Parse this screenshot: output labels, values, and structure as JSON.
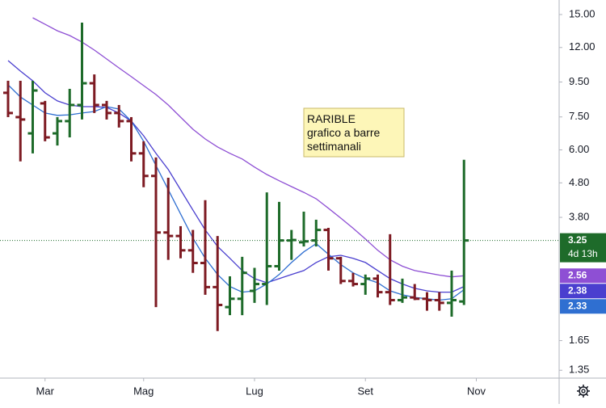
{
  "chart_data": {
    "type": "ohlc",
    "annotation": [
      "RARIBLE",
      "grafico a barre",
      "settimanali"
    ],
    "categories": [
      null,
      null,
      null,
      "Mar",
      null,
      null,
      null,
      null,
      null,
      null,
      null,
      "Mag",
      null,
      null,
      null,
      null,
      null,
      null,
      null,
      null,
      "Lug",
      null,
      null,
      null,
      null,
      null,
      null,
      null,
      null,
      "Set",
      null,
      null,
      null,
      null,
      null,
      null,
      null,
      null,
      "Nov"
    ],
    "open": [
      8.83,
      7.49,
      6.71,
      8.22,
      6.71,
      7.29,
      8.13,
      9.42,
      8.13,
      7.7,
      7.29,
      5.86,
      5.03,
      3.43,
      3.35,
      3.04,
      2.79,
      2.37,
      2.07,
      2.19,
      2.31,
      2.42,
      2.73,
      3.25,
      3.21,
      3.25,
      3.49,
      2.88,
      2.47,
      2.42,
      2.51,
      2.29,
      2.17,
      2.21,
      2.19,
      2.17,
      2.13,
      2.15,
      null
    ],
    "high": [
      9.58,
      9.58,
      9.58,
      8.36,
      7.49,
      9.07,
      14.2,
      10.0,
      8.36,
      8.13,
      7.49,
      6.36,
      5.7,
      4.97,
      3.58,
      3.49,
      4.27,
      3.35,
      2.55,
      2.91,
      2.7,
      4.5,
      4.22,
      3.49,
      3.95,
      3.74,
      3.54,
      2.91,
      2.61,
      2.58,
      2.58,
      3.39,
      2.51,
      2.42,
      2.29,
      2.29,
      2.65,
      5.61,
      null
    ],
    "low": [
      7.49,
      5.55,
      5.86,
      6.36,
      6.18,
      6.53,
      7.37,
      7.7,
      7.37,
      6.98,
      5.55,
      4.66,
      2.07,
      2.85,
      2.88,
      2.61,
      2.25,
      1.76,
      1.96,
      1.96,
      2.13,
      2.1,
      2.65,
      2.85,
      3.12,
      3.12,
      2.65,
      2.42,
      2.38,
      2.25,
      2.21,
      2.1,
      2.13,
      2.17,
      2.02,
      2.02,
      1.94,
      2.1,
      null
    ],
    "close": [
      7.7,
      7.37,
      8.97,
      6.53,
      7.29,
      8.13,
      9.42,
      8.13,
      7.7,
      7.29,
      5.86,
      5.03,
      3.43,
      3.35,
      3.04,
      2.79,
      2.37,
      2.1,
      2.19,
      2.61,
      2.42,
      2.73,
      3.25,
      3.26,
      3.23,
      3.49,
      2.88,
      2.47,
      2.42,
      2.51,
      2.29,
      2.17,
      2.21,
      2.19,
      2.17,
      2.13,
      2.17,
      3.25,
      null
    ],
    "up_color": "#1e6b2a",
    "down_color": "#7d1a22",
    "moving_averages": [
      {
        "color": "#8e4fd4",
        "values": [
          null,
          null,
          14.67,
          14.04,
          13.44,
          13.01,
          12.45,
          11.79,
          11.1,
          10.45,
          9.85,
          9.27,
          8.73,
          8.13,
          7.49,
          6.9,
          6.46,
          6.12,
          5.86,
          5.64,
          5.34,
          5.08,
          4.87,
          4.68,
          4.5,
          4.31,
          4.04,
          3.78,
          3.53,
          3.28,
          3.04,
          2.85,
          2.73,
          2.65,
          2.61,
          2.57,
          2.54,
          2.56,
          null
        ]
      },
      {
        "color": "#4a3fcf",
        "values": [
          10.98,
          10.23,
          9.58,
          8.83,
          8.36,
          8.13,
          8.04,
          8.04,
          8.0,
          7.7,
          7.29,
          6.6,
          5.86,
          5.25,
          4.58,
          3.99,
          3.49,
          3.12,
          2.88,
          2.65,
          2.51,
          2.44,
          2.51,
          2.58,
          2.65,
          2.8,
          2.91,
          2.94,
          2.88,
          2.8,
          2.65,
          2.51,
          2.42,
          2.35,
          2.31,
          2.29,
          2.29,
          2.38,
          null
        ]
      },
      {
        "color": "#2f6fd1",
        "values": [
          9.32,
          8.58,
          8.13,
          7.7,
          7.58,
          7.61,
          7.7,
          7.78,
          8.04,
          7.91,
          7.29,
          6.36,
          5.4,
          4.58,
          3.89,
          3.3,
          2.88,
          2.58,
          2.38,
          2.29,
          2.31,
          2.42,
          2.58,
          2.8,
          3.01,
          3.18,
          2.96,
          2.76,
          2.61,
          2.51,
          2.44,
          2.31,
          2.25,
          2.21,
          2.19,
          2.17,
          2.19,
          2.33,
          null
        ]
      }
    ],
    "countdown": "4d 13h",
    "log_scale": true,
    "grid": false,
    "ylim": [
      1.28,
      16.55
    ],
    "yticks": [
      {
        "value": 15,
        "label": "15.00"
      },
      {
        "value": 12,
        "label": "12.00"
      },
      {
        "value": 9.5,
        "label": "9.50"
      },
      {
        "value": 7.5,
        "label": "7.50"
      },
      {
        "value": 6,
        "label": "6.00"
      },
      {
        "value": 4.8,
        "label": "4.80"
      },
      {
        "value": 3.8,
        "label": "3.80"
      },
      1.65,
      1.35
    ]
  }
}
